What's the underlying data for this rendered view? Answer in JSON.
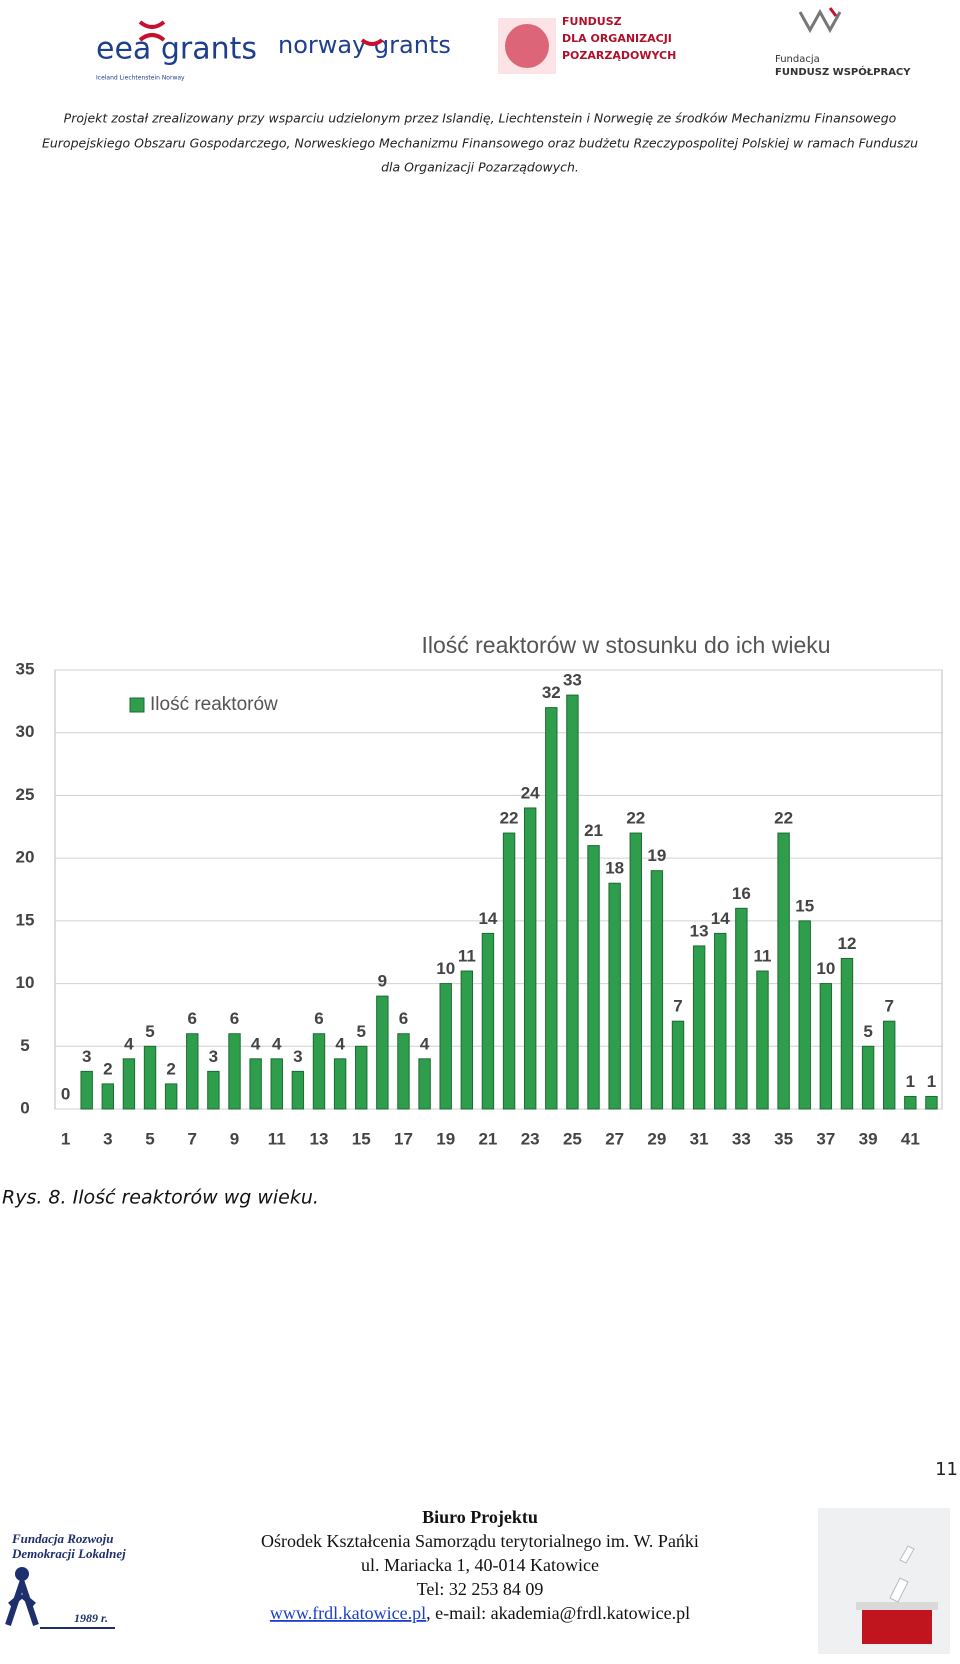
{
  "header": {
    "logos": {
      "eea": "eea grants",
      "eea_sub": "Iceland Liechtenstein Norway",
      "norway": "norway grants",
      "fundusz": [
        "FUNDUSZ",
        "DLA ORGANIZACJI",
        "POZARZĄDOWYCH"
      ],
      "fundacja": "Fundacja",
      "fundacja_name": "FUNDUSZ WSPÓŁPRACY"
    },
    "lines": [
      "Projekt został zrealizowany przy wsparciu udzielonym przez Islandię, Liechtenstein i Norwegię ze środków Mechanizmu Finansowego",
      "Europejskiego Obszaru Gospodarczego, Norweskiego Mechanizmu Finansowego oraz budżetu Rzeczypospolitej Polskiej w ramach Funduszu",
      "dla Organizacji Pozarządowych."
    ]
  },
  "chart_data": {
    "type": "bar",
    "title": "Ilość reaktorów w stosunku do ich wieku",
    "categories": [
      "1",
      null,
      "3",
      null,
      "5",
      null,
      "7",
      null,
      "9",
      null,
      "11",
      null,
      "13",
      null,
      "15",
      null,
      "17",
      null,
      "19",
      null,
      "21",
      null,
      "23",
      null,
      "25",
      null,
      "27",
      null,
      "29",
      null,
      "31",
      null,
      "33",
      null,
      "35",
      null,
      "37",
      null,
      "39",
      null,
      "41",
      null
    ],
    "series": [
      {
        "name": "Ilość reaktorów",
        "color": "#2f9e4c",
        "values": [
          0,
          3,
          2,
          4,
          5,
          2,
          6,
          3,
          6,
          4,
          4,
          3,
          6,
          4,
          5,
          9,
          6,
          4,
          10,
          11,
          14,
          22,
          24,
          32,
          33,
          21,
          18,
          22,
          19,
          7,
          13,
          14,
          16,
          11,
          22,
          15,
          10,
          12,
          5,
          7,
          1,
          1
        ]
      }
    ],
    "ylim": [
      0,
      35
    ],
    "yticks": [
      0,
      5,
      10,
      15,
      20,
      25,
      30,
      35
    ],
    "grid": true,
    "legend": "top-left"
  },
  "caption": "Rys. 8. Ilość reaktorów wg wieku.",
  "page_number": "11",
  "footer": {
    "org": [
      "Fundacja Rozwoju",
      "Demokracji Lokalnej"
    ],
    "year": "1989 r.",
    "title": "Biuro Projektu",
    "lines": [
      "Ośrodek Kształcenia Samorządu terytorialnego im. W. Pańki",
      "ul. Mariacka 1, 40-014 Katowice",
      "Tel: 32 253 84 09"
    ],
    "link": "www.frdl.katowice.pl",
    "email": ", e-mail: akademia@frdl.katowice.pl"
  }
}
